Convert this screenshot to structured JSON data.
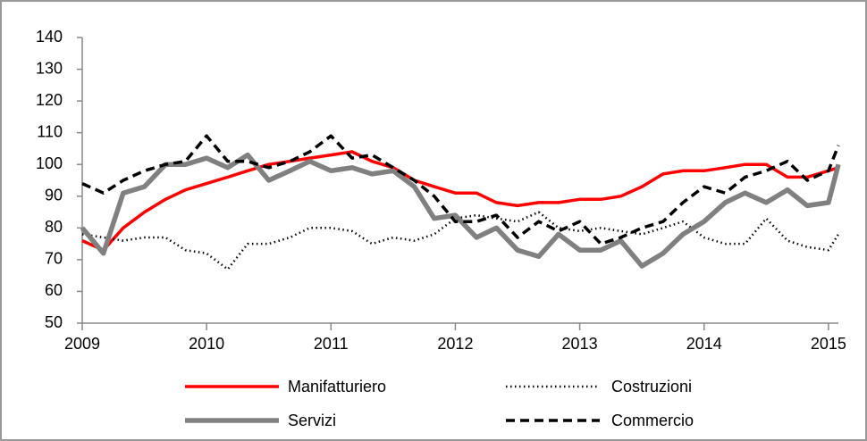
{
  "chart_data": {
    "type": "line",
    "x": [
      2009.0,
      2009.17,
      2009.33,
      2009.5,
      2009.67,
      2009.83,
      2010.0,
      2010.17,
      2010.33,
      2010.5,
      2010.67,
      2010.83,
      2011.0,
      2011.17,
      2011.33,
      2011.5,
      2011.67,
      2011.83,
      2012.0,
      2012.17,
      2012.33,
      2012.5,
      2012.67,
      2012.83,
      2013.0,
      2013.17,
      2013.33,
      2013.5,
      2013.67,
      2013.83,
      2014.0,
      2014.17,
      2014.33,
      2014.5,
      2014.67,
      2014.83,
      2015.0,
      2015.08
    ],
    "series": [
      {
        "name": "Manifatturiero",
        "color": "#ff0000",
        "dash": "solid",
        "values": [
          76,
          73,
          80,
          85,
          89,
          92,
          94,
          96,
          98,
          100,
          101,
          102,
          103,
          104,
          101,
          99,
          95,
          93,
          91,
          91,
          88,
          87,
          88,
          88,
          89,
          89,
          90,
          93,
          97,
          98,
          98,
          99,
          100,
          100,
          96,
          96,
          98,
          99
        ]
      },
      {
        "name": "Costruzioni",
        "color": "#000000",
        "dash": "dotted",
        "values": [
          78,
          77,
          76,
          77,
          77,
          73,
          72,
          67,
          75,
          75,
          77,
          80,
          80,
          79,
          75,
          77,
          76,
          78,
          83,
          84,
          83,
          82,
          85,
          80,
          79,
          80,
          79,
          78,
          80,
          82,
          77,
          75,
          75,
          83,
          76,
          74,
          73,
          78
        ]
      },
      {
        "name": "Servizi",
        "color": "#808080",
        "dash": "solid",
        "values": [
          80,
          72,
          91,
          93,
          100,
          100,
          102,
          99,
          103,
          95,
          98,
          101,
          98,
          99,
          97,
          98,
          93,
          83,
          84,
          77,
          80,
          73,
          71,
          78,
          73,
          73,
          76,
          68,
          72,
          78,
          82,
          88,
          91,
          88,
          92,
          87,
          88,
          100
        ]
      },
      {
        "name": "Commercio",
        "color": "#000000",
        "dash": "dashed",
        "values": [
          94,
          91,
          95,
          98,
          100,
          101,
          109,
          101,
          101,
          99,
          101,
          104,
          109,
          102,
          103,
          99,
          95,
          90,
          82,
          82,
          84,
          77,
          82,
          79,
          82,
          75,
          77,
          80,
          82,
          88,
          93,
          91,
          96,
          98,
          101,
          95,
          98,
          106
        ]
      }
    ],
    "xlim": [
      2009,
      2015.08
    ],
    "xticks": [
      2009,
      2010,
      2011,
      2012,
      2013,
      2014,
      2015
    ],
    "ylim": [
      50,
      140
    ],
    "yticks": [
      50,
      60,
      70,
      80,
      90,
      100,
      110,
      120,
      130,
      140
    ],
    "grid": false
  }
}
